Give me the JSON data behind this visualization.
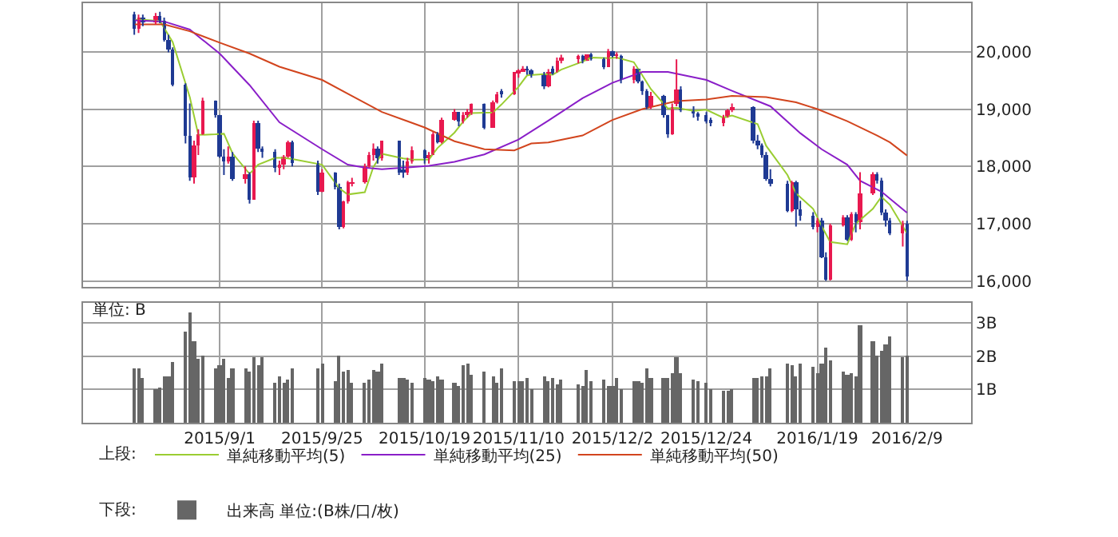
{
  "chart_data": [
    {
      "type": "candlestick",
      "x": [
        "2015-08-12",
        "2015-08-13",
        "2015-08-14",
        "2015-08-17",
        "2015-08-18",
        "2015-08-19",
        "2015-08-20",
        "2015-08-21",
        "2015-08-24",
        "2015-08-25",
        "2015-08-26",
        "2015-08-27",
        "2015-08-28",
        "2015-08-31",
        "2015-09-01",
        "2015-09-02",
        "2015-09-03",
        "2015-09-04",
        "2015-09-07",
        "2015-09-08",
        "2015-09-09",
        "2015-09-10",
        "2015-09-11",
        "2015-09-14",
        "2015-09-15",
        "2015-09-16",
        "2015-09-17",
        "2015-09-18",
        "2015-09-24",
        "2015-09-25",
        "2015-09-28",
        "2015-09-29",
        "2015-09-30",
        "2015-10-01",
        "2015-10-02",
        "2015-10-05",
        "2015-10-06",
        "2015-10-07",
        "2015-10-08",
        "2015-10-09",
        "2015-10-13",
        "2015-10-14",
        "2015-10-15",
        "2015-10-16",
        "2015-10-19",
        "2015-10-20",
        "2015-10-21",
        "2015-10-22",
        "2015-10-23",
        "2015-10-26",
        "2015-10-27",
        "2015-10-28",
        "2015-10-29",
        "2015-10-30",
        "2015-11-02",
        "2015-11-04",
        "2015-11-05",
        "2015-11-06",
        "2015-11-09",
        "2015-11-10",
        "2015-11-11",
        "2015-11-12",
        "2015-11-13",
        "2015-11-16",
        "2015-11-17",
        "2015-11-18",
        "2015-11-19",
        "2015-11-20",
        "2015-11-24",
        "2015-11-25",
        "2015-11-26",
        "2015-11-27",
        "2015-11-30",
        "2015-12-01",
        "2015-12-02",
        "2015-12-03",
        "2015-12-04",
        "2015-12-07",
        "2015-12-08",
        "2015-12-09",
        "2015-12-10",
        "2015-12-11",
        "2015-12-14",
        "2015-12-15",
        "2015-12-16",
        "2015-12-17",
        "2015-12-18",
        "2015-12-21",
        "2015-12-22",
        "2015-12-24",
        "2015-12-25",
        "2015-12-28",
        "2015-12-29",
        "2015-12-30",
        "2016-01-04",
        "2016-01-05",
        "2016-01-06",
        "2016-01-07",
        "2016-01-08",
        "2016-01-12",
        "2016-01-13",
        "2016-01-14",
        "2016-01-15",
        "2016-01-18",
        "2016-01-19",
        "2016-01-20",
        "2016-01-21",
        "2016-01-22",
        "2016-01-25",
        "2016-01-26",
        "2016-01-27",
        "2016-01-28",
        "2016-01-29",
        "2016-02-01",
        "2016-02-02",
        "2016-02-03",
        "2016-02-04",
        "2016-02-05",
        "2016-02-08",
        "2016-02-09"
      ],
      "ohlc": [
        [
          20650,
          20700,
          20300,
          20392
        ],
        [
          20392,
          20650,
          20330,
          20595
        ],
        [
          20595,
          20650,
          20450,
          20519
        ],
        [
          20519,
          20680,
          20480,
          20620
        ],
        [
          20620,
          20700,
          20500,
          20554
        ],
        [
          20554,
          20600,
          20180,
          20222
        ],
        [
          20222,
          20300,
          19990,
          20033
        ],
        [
          20033,
          20080,
          19400,
          19435
        ],
        [
          19435,
          19450,
          18400,
          18540
        ],
        [
          18540,
          19100,
          17750,
          17806
        ],
        [
          17806,
          18450,
          17700,
          18376
        ],
        [
          18376,
          18650,
          18200,
          18574
        ],
        [
          18574,
          19200,
          18550,
          19136
        ],
        [
          19136,
          19150,
          18850,
          18890
        ],
        [
          18890,
          18900,
          18150,
          18165
        ],
        [
          18165,
          18300,
          17850,
          18095
        ],
        [
          18095,
          18350,
          18050,
          18182
        ],
        [
          18182,
          18250,
          17750,
          17792
        ],
        [
          17792,
          18000,
          17700,
          17860
        ],
        [
          17860,
          17900,
          17350,
          17427
        ],
        [
          17427,
          18800,
          17420,
          18770
        ],
        [
          18770,
          18800,
          18250,
          18299
        ],
        [
          18299,
          18350,
          18150,
          18264
        ],
        [
          18264,
          18300,
          17900,
          17965
        ],
        [
          17965,
          18100,
          17850,
          18026
        ],
        [
          18026,
          18200,
          17950,
          18171
        ],
        [
          18171,
          18450,
          18150,
          18432
        ],
        [
          18432,
          18450,
          18000,
          18070
        ],
        [
          18070,
          18100,
          17500,
          17571
        ],
        [
          17571,
          17950,
          17550,
          17880
        ],
        [
          17880,
          17900,
          17600,
          17645
        ],
        [
          17645,
          17700,
          16900,
          16930
        ],
        [
          16930,
          17400,
          16920,
          17388
        ],
        [
          17388,
          17750,
          17350,
          17722
        ],
        [
          17722,
          17800,
          17650,
          17725
        ],
        [
          17725,
          18050,
          17700,
          18005
        ],
        [
          18005,
          18250,
          17980,
          18186
        ],
        [
          18186,
          18400,
          18100,
          18322
        ],
        [
          18322,
          18350,
          18050,
          18141
        ],
        [
          18141,
          18450,
          18100,
          18438
        ],
        [
          18438,
          18450,
          17850,
          17891
        ],
        [
          17950,
          18100,
          17800,
          17891
        ],
        [
          17891,
          18150,
          17850,
          18096
        ],
        [
          18096,
          18350,
          18050,
          18291
        ],
        [
          18291,
          18300,
          18050,
          18131
        ],
        [
          18131,
          18250,
          18050,
          18207
        ],
        [
          18207,
          18600,
          18200,
          18554
        ],
        [
          18554,
          18600,
          18400,
          18435
        ],
        [
          18435,
          18850,
          18400,
          18825
        ],
        [
          18825,
          19000,
          18800,
          18947
        ],
        [
          18947,
          18950,
          18700,
          18777
        ],
        [
          18777,
          18950,
          18750,
          18903
        ],
        [
          18903,
          19000,
          18850,
          18935
        ],
        [
          18935,
          19100,
          18900,
          19083
        ],
        [
          19083,
          19100,
          18650,
          18683
        ],
        [
          18683,
          19150,
          18680,
          19116
        ],
        [
          19116,
          19300,
          19100,
          19265
        ],
        [
          19300,
          19350,
          19200,
          19265
        ],
        [
          19265,
          19650,
          19250,
          19642
        ],
        [
          19642,
          19700,
          19550,
          19671
        ],
        [
          19671,
          19750,
          19650,
          19697
        ],
        [
          19697,
          19750,
          19600,
          19691
        ],
        [
          19691,
          19700,
          19550,
          19596
        ],
        [
          19596,
          19650,
          19350,
          19393
        ],
        [
          19393,
          19700,
          19380,
          19649
        ],
        [
          19700,
          19750,
          19600,
          19649
        ],
        [
          19649,
          19900,
          19640,
          19859
        ],
        [
          19859,
          19950,
          19800,
          19879
        ],
        [
          19879,
          19950,
          19800,
          19924
        ],
        [
          19924,
          19950,
          19800,
          19847
        ],
        [
          19847,
          19950,
          19840,
          19944
        ],
        [
          19944,
          19980,
          19850,
          19883
        ],
        [
          19883,
          19900,
          19700,
          19747
        ],
        [
          19747,
          20050,
          19740,
          20012
        ],
        [
          20012,
          20020,
          19900,
          19938
        ],
        [
          19938,
          19990,
          19880,
          19939
        ],
        [
          19939,
          19950,
          19450,
          19504
        ],
        [
          19504,
          19750,
          19450,
          19698
        ],
        [
          19698,
          19700,
          19450,
          19492
        ],
        [
          19492,
          19500,
          19250,
          19302
        ],
        [
          19302,
          19350,
          19000,
          19046
        ],
        [
          19046,
          19300,
          19000,
          19230
        ],
        [
          19230,
          19250,
          18850,
          18883
        ],
        [
          18883,
          18900,
          18500,
          18565
        ],
        [
          18565,
          19100,
          18550,
          19049
        ],
        [
          19100,
          19870,
          19050,
          19353
        ],
        [
          19353,
          19400,
          18950,
          18986
        ],
        [
          18986,
          19050,
          18850,
          18916
        ],
        [
          18916,
          18950,
          18800,
          18886
        ],
        [
          18886,
          18950,
          18750,
          18789
        ],
        [
          18789,
          18850,
          18700,
          18769
        ],
        [
          18769,
          18900,
          18700,
          18873
        ],
        [
          18873,
          19000,
          18850,
          18982
        ],
        [
          18982,
          19100,
          18950,
          19033
        ],
        [
          19033,
          19050,
          18400,
          18450
        ],
        [
          18450,
          18550,
          18300,
          18374
        ],
        [
          18374,
          18400,
          18150,
          18191
        ],
        [
          18191,
          18250,
          17750,
          17767
        ],
        [
          17767,
          17950,
          17650,
          17697
        ],
        [
          17697,
          17750,
          17200,
          17218
        ],
        [
          17218,
          17750,
          17200,
          17715
        ],
        [
          17715,
          17750,
          16950,
          17240
        ],
        [
          17240,
          17400,
          17050,
          17147
        ],
        [
          17147,
          17200,
          16900,
          16955
        ],
        [
          16955,
          17100,
          16850,
          17048
        ],
        [
          17048,
          17100,
          16400,
          16416
        ],
        [
          16416,
          16500,
          16000,
          16017
        ],
        [
          16017,
          17000,
          16010,
          16958
        ],
        [
          16958,
          17150,
          16950,
          17110
        ],
        [
          17110,
          17150,
          16700,
          16708
        ],
        [
          16708,
          17200,
          16700,
          17163
        ],
        [
          17163,
          17200,
          16850,
          17041
        ],
        [
          17041,
          17900,
          16900,
          17518
        ],
        [
          17518,
          17900,
          17500,
          17865
        ],
        [
          17865,
          17900,
          17700,
          17750
        ],
        [
          17750,
          17800,
          17150,
          17191
        ],
        [
          17191,
          17250,
          16950,
          17044
        ],
        [
          17044,
          17100,
          16800,
          16819
        ],
        [
          16819,
          17050,
          16600,
          17004
        ],
        [
          17004,
          17050,
          16000,
          16085
        ]
      ],
      "colors": [
        "#1f3a93",
        "#e8194f",
        "#1f3a93",
        "#e8194f",
        "#1f3a93",
        "#1f3a93",
        "#1f3a93",
        "#1f3a93",
        "#1f3a93",
        "#1f3a93",
        "#e8194f",
        "#e8194f",
        "#e8194f",
        "#1f3a93",
        "#1f3a93",
        "#1f3a93",
        "#e8194f",
        "#1f3a93",
        "#e8194f",
        "#1f3a93",
        "#e8194f",
        "#1f3a93",
        "#1f3a93",
        "#1f3a93",
        "#e8194f",
        "#e8194f",
        "#e8194f",
        "#1f3a93",
        "#1f3a93",
        "#e8194f",
        "#1f3a93",
        "#1f3a93",
        "#e8194f",
        "#e8194f",
        "#e8194f",
        "#e8194f",
        "#e8194f",
        "#e8194f",
        "#1f3a93",
        "#e8194f",
        "#1f3a93",
        "#1f3a93",
        "#e8194f",
        "#e8194f",
        "#1f3a93",
        "#e8194f",
        "#e8194f",
        "#1f3a93",
        "#e8194f",
        "#e8194f",
        "#1f3a93",
        "#e8194f",
        "#e8194f",
        "#e8194f",
        "#1f3a93",
        "#e8194f",
        "#e8194f",
        "#1f3a93",
        "#e8194f",
        "#e8194f",
        "#e8194f",
        "#1f3a93",
        "#1f3a93",
        "#1f3a93",
        "#e8194f",
        "#1f3a93",
        "#e8194f",
        "#e8194f",
        "#e8194f",
        "#1f3a93",
        "#e8194f",
        "#1f3a93",
        "#1f3a93",
        "#e8194f",
        "#1f3a93",
        "#e8194f",
        "#1f3a93",
        "#e8194f",
        "#1f3a93",
        "#1f3a93",
        "#1f3a93",
        "#e8194f",
        "#1f3a93",
        "#1f3a93",
        "#e8194f",
        "#e8194f",
        "#1f3a93",
        "#1f3a93",
        "#1f3a93",
        "#1f3a93",
        "#1f3a93",
        "#e8194f",
        "#e8194f",
        "#e8194f",
        "#1f3a93",
        "#1f3a93",
        "#1f3a93",
        "#1f3a93",
        "#1f3a93",
        "#1f3a93",
        "#e8194f",
        "#1f3a93",
        "#1f3a93",
        "#1f3a93",
        "#e8194f",
        "#1f3a93",
        "#1f3a93",
        "#e8194f",
        "#e8194f",
        "#1f3a93",
        "#e8194f",
        "#1f3a93",
        "#e8194f",
        "#e8194f",
        "#1f3a93",
        "#1f3a93",
        "#1f3a93",
        "#1f3a93",
        "#e8194f",
        "#1f3a93"
      ],
      "series": [
        {
          "type": "line",
          "name": "単純移動平均(5)",
          "color": "#9acd32",
          "x": [
            "2015-08-12",
            "2015-08-14",
            "2015-08-18",
            "2015-08-21",
            "2015-08-25",
            "2015-08-27",
            "2015-08-31",
            "2015-09-02",
            "2015-09-04",
            "2015-09-08",
            "2015-09-10",
            "2015-09-14",
            "2015-09-16",
            "2015-09-18",
            "2015-09-25",
            "2015-09-29",
            "2015-10-01",
            "2015-10-05",
            "2015-10-07",
            "2015-10-09",
            "2015-10-14",
            "2015-10-16",
            "2015-10-20",
            "2015-10-22",
            "2015-10-26",
            "2015-10-28",
            "2015-10-30",
            "2015-11-04",
            "2015-11-06",
            "2015-11-10",
            "2015-11-12",
            "2015-11-16",
            "2015-11-18",
            "2015-11-20",
            "2015-11-25",
            "2015-11-27",
            "2015-12-01",
            "2015-12-03",
            "2015-12-07",
            "2015-12-09",
            "2015-12-11",
            "2015-12-15",
            "2015-12-17",
            "2015-12-21",
            "2015-12-24",
            "2015-12-28",
            "2015-12-30",
            "2016-01-05",
            "2016-01-07",
            "2016-01-12",
            "2016-01-14",
            "2016-01-18",
            "2016-01-20",
            "2016-01-22",
            "2016-01-26",
            "2016-01-28",
            "2016-02-01",
            "2016-02-03",
            "2016-02-05",
            "2016-02-09"
          ],
          "values": [
            20560,
            20560,
            20540,
            20170,
            19210,
            18550,
            18560,
            18570,
            18230,
            17870,
            18030,
            18150,
            18150,
            18130,
            18030,
            17620,
            17510,
            17550,
            17990,
            18220,
            18140,
            18120,
            18120,
            18320,
            18590,
            18780,
            18930,
            18940,
            19080,
            19390,
            19590,
            19610,
            19600,
            19690,
            19830,
            19900,
            19890,
            19900,
            19820,
            19590,
            19350,
            19010,
            19020,
            18970,
            18990,
            18850,
            18890,
            18740,
            18360,
            17850,
            17530,
            17260,
            16960,
            16680,
            16640,
            17000,
            17260,
            17470,
            17330,
            16830
          ]
        },
        {
          "type": "line",
          "name": "単純移動平均(25)",
          "color": "#8a1fc8",
          "x": [
            "2015-08-12",
            "2015-08-19",
            "2015-08-25",
            "2015-09-01",
            "2015-09-08",
            "2015-09-15",
            "2015-09-25",
            "2015-10-01",
            "2015-10-05",
            "2015-10-09",
            "2015-10-20",
            "2015-10-26",
            "2015-11-02",
            "2015-11-10",
            "2015-11-17",
            "2015-11-25",
            "2015-12-02",
            "2015-12-09",
            "2015-12-15",
            "2015-12-24",
            "2015-12-30",
            "2016-01-08",
            "2016-01-15",
            "2016-01-20",
            "2016-01-26",
            "2016-01-29",
            "2016-02-03",
            "2016-02-09"
          ],
          "values": [
            20550,
            20530,
            20390,
            19970,
            19420,
            18770,
            18300,
            18030,
            17980,
            17950,
            18010,
            18080,
            18210,
            18470,
            18800,
            19190,
            19460,
            19650,
            19650,
            19510,
            19320,
            19050,
            18580,
            18300,
            18030,
            17750,
            17560,
            17190
          ]
        },
        {
          "type": "line",
          "name": "単純移動平均(50)",
          "color": "#d2451e",
          "x": [
            "2015-08-12",
            "2015-08-19",
            "2015-08-25",
            "2015-09-01",
            "2015-09-08",
            "2015-09-15",
            "2015-09-25",
            "2015-10-02",
            "2015-10-09",
            "2015-10-19",
            "2015-10-26",
            "2015-11-02",
            "2015-11-09",
            "2015-11-13",
            "2015-11-17",
            "2015-11-25",
            "2015-12-02",
            "2015-12-09",
            "2015-12-17",
            "2015-12-24",
            "2015-12-30",
            "2016-01-07",
            "2016-01-14",
            "2016-01-19",
            "2016-01-26",
            "2016-02-02",
            "2016-02-05",
            "2016-02-09"
          ],
          "values": [
            20480,
            20480,
            20360,
            20160,
            19970,
            19740,
            19510,
            19230,
            18950,
            18680,
            18440,
            18300,
            18280,
            18400,
            18420,
            18540,
            18810,
            19000,
            19140,
            19170,
            19230,
            19210,
            19120,
            19000,
            18790,
            18540,
            18420,
            18190
          ]
        }
      ],
      "xlim": [
        "2015-07-31",
        "2016-02-24"
      ],
      "xticks": [
        {
          "value": "2015-09-01",
          "label": null
        },
        {
          "value": "2015-09-25",
          "label": null
        },
        {
          "value": "2015-10-19",
          "label": null
        },
        {
          "value": "2015-11-10",
          "label": null
        },
        {
          "value": "2015-12-02",
          "label": null
        },
        {
          "value": "2015-12-24",
          "label": null
        },
        {
          "value": "2016-01-19",
          "label": null
        },
        {
          "value": "2016-02-09",
          "label": null
        }
      ],
      "ylim": [
        15900,
        20850
      ],
      "yticks": [
        {
          "value": 16000,
          "label": "16,000"
        },
        {
          "value": 17000,
          "label": "17,000"
        },
        {
          "value": 18000,
          "label": "18,000"
        },
        {
          "value": 19000,
          "label": "19,000"
        },
        {
          "value": 20000,
          "label": "20,000"
        }
      ],
      "tick_labels": "y",
      "grid": true,
      "legend": "bottom",
      "annotations": [
        "上段:"
      ]
    },
    {
      "type": "bar",
      "x": [
        "2015-08-12",
        "2015-08-13",
        "2015-08-14",
        "2015-08-17",
        "2015-08-18",
        "2015-08-19",
        "2015-08-20",
        "2015-08-21",
        "2015-08-24",
        "2015-08-25",
        "2015-08-26",
        "2015-08-27",
        "2015-08-28",
        "2015-08-31",
        "2015-09-01",
        "2015-09-02",
        "2015-09-03",
        "2015-09-04",
        "2015-09-07",
        "2015-09-08",
        "2015-09-09",
        "2015-09-10",
        "2015-09-11",
        "2015-09-14",
        "2015-09-15",
        "2015-09-16",
        "2015-09-17",
        "2015-09-18",
        "2015-09-24",
        "2015-09-25",
        "2015-09-28",
        "2015-09-29",
        "2015-09-30",
        "2015-10-01",
        "2015-10-02",
        "2015-10-05",
        "2015-10-06",
        "2015-10-07",
        "2015-10-08",
        "2015-10-09",
        "2015-10-13",
        "2015-10-14",
        "2015-10-15",
        "2015-10-16",
        "2015-10-19",
        "2015-10-20",
        "2015-10-21",
        "2015-10-22",
        "2015-10-23",
        "2015-10-26",
        "2015-10-27",
        "2015-10-28",
        "2015-10-29",
        "2015-10-30",
        "2015-11-02",
        "2015-11-04",
        "2015-11-05",
        "2015-11-06",
        "2015-11-09",
        "2015-11-10",
        "2015-11-11",
        "2015-11-12",
        "2015-11-13",
        "2015-11-16",
        "2015-11-17",
        "2015-11-18",
        "2015-11-19",
        "2015-11-20",
        "2015-11-24",
        "2015-11-25",
        "2015-11-26",
        "2015-11-27",
        "2015-11-30",
        "2015-12-01",
        "2015-12-02",
        "2015-12-03",
        "2015-12-04",
        "2015-12-07",
        "2015-12-08",
        "2015-12-09",
        "2015-12-10",
        "2015-12-11",
        "2015-12-14",
        "2015-12-15",
        "2015-12-16",
        "2015-12-17",
        "2015-12-18",
        "2015-12-21",
        "2015-12-22",
        "2015-12-24",
        "2015-12-25",
        "2015-12-28",
        "2015-12-29",
        "2015-12-30",
        "2016-01-04",
        "2016-01-05",
        "2016-01-06",
        "2016-01-07",
        "2016-01-08",
        "2016-01-12",
        "2016-01-13",
        "2016-01-14",
        "2016-01-15",
        "2016-01-18",
        "2016-01-19",
        "2016-01-20",
        "2016-01-21",
        "2016-01-22",
        "2016-01-25",
        "2016-01-26",
        "2016-01-27",
        "2016-01-28",
        "2016-01-29",
        "2016-02-01",
        "2016-02-02",
        "2016-02-03",
        "2016-02-04",
        "2016-02-05",
        "2016-02-08",
        "2016-02-09"
      ],
      "series": [
        {
          "name": "出来高 単位:(B株/口/枚)",
          "color": "#666666",
          "values": [
            1.66,
            1.62,
            1.35,
            1.02,
            1.07,
            1.42,
            1.42,
            1.84,
            2.76,
            3.3,
            2.45,
            1.92,
            2.03,
            1.64,
            1.73,
            1.95,
            1.37,
            1.66,
            1.62,
            1.55,
            1.99,
            1.73,
            1.99,
            1.2,
            1.4,
            1.2,
            1.29,
            1.66,
            1.66,
            1.8,
            1.26,
            2.03,
            1.55,
            1.6,
            1.2,
            1.2,
            1.31,
            1.57,
            1.53,
            1.8,
            1.35,
            1.33,
            1.29,
            1.2,
            1.35,
            1.3,
            1.24,
            1.42,
            1.29,
            1.2,
            1.11,
            1.75,
            1.8,
            1.44,
            1.53,
            1.4,
            1.2,
            1.66,
            1.24,
            1.26,
            1.26,
            1.35,
            1.0,
            1.4,
            1.24,
            1.35,
            1.15,
            1.31,
            1.15,
            1.13,
            1.57,
            1.25,
            1.31,
            1.13,
            1.13,
            1.33,
            1.0,
            1.24,
            1.26,
            1.2,
            1.62,
            1.33,
            1.35,
            1.37,
            1.48,
            1.99,
            1.51,
            1.31,
            1.26,
            1.2,
            1.0,
            0.98,
            0.98,
            1.0,
            1.35,
            1.33,
            1.4,
            1.4,
            1.66,
            1.8,
            1.75,
            1.4,
            1.77,
            1.68,
            1.48,
            1.77,
            2.25,
            1.86,
            1.53,
            1.44,
            1.51,
            1.4,
            2.93,
            2.45,
            2.01,
            2.19,
            2.34,
            2.6,
            1.97,
            2.03
          ]
        }
      ],
      "xlim": [
        "2015-07-31",
        "2016-02-24"
      ],
      "xticks": [
        {
          "value": "2015-09-01",
          "label": "2015/9/1"
        },
        {
          "value": "2015-09-25",
          "label": "2015/9/25"
        },
        {
          "value": "2015-10-19",
          "label": "2015/10/19"
        },
        {
          "value": "2015-11-10",
          "label": "2015/11/10"
        },
        {
          "value": "2015-12-02",
          "label": "2015/12/2"
        },
        {
          "value": "2015-12-24",
          "label": "2015/12/24"
        },
        {
          "value": "2016-01-19",
          "label": "2016/1/19"
        },
        {
          "value": "2016-02-09",
          "label": "2016/2/9"
        }
      ],
      "ylim": [
        0,
        3.6
      ],
      "yticks": [
        {
          "value": 1,
          "label": "1B"
        },
        {
          "value": 2,
          "label": "2B"
        },
        {
          "value": 3,
          "label": "3B"
        }
      ],
      "grid": true,
      "legend": "bottom",
      "annotations": [
        "単位: B",
        "下段:"
      ]
    }
  ]
}
